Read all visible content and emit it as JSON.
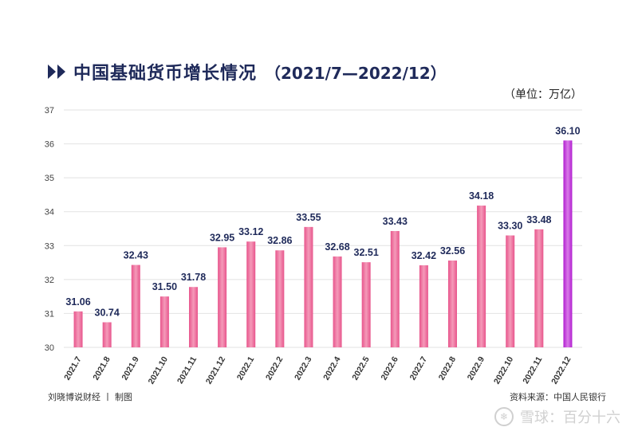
{
  "header": {
    "title": "中国基础货币增长情况",
    "subtitle": "（2021/7—2022/12）",
    "unit": "（单位：万亿）"
  },
  "footer": {
    "left": "刘晓博说财经 丨 制图",
    "right": "资料来源：中国人民银行",
    "brand": "雪球：百分十六"
  },
  "chart_data": {
    "type": "bar",
    "title": "中国基础货币增长情况",
    "categories": [
      "2021.7",
      "2021.8",
      "2021.9",
      "2021.10",
      "2021.11",
      "2021.12",
      "2022.1",
      "2022.2",
      "2022.3",
      "2022.4",
      "2022.5",
      "2022.6",
      "2022.7",
      "2022.8",
      "2022.9",
      "2022.10",
      "2022.11",
      "2022.12"
    ],
    "values": [
      31.06,
      30.74,
      32.43,
      31.5,
      31.78,
      32.95,
      33.12,
      32.86,
      33.55,
      32.68,
      32.51,
      33.43,
      32.42,
      32.56,
      34.18,
      33.3,
      33.48,
      36.1
    ],
    "value_labels": [
      "31.06",
      "30.74",
      "32.43",
      "31.50",
      "31.78",
      "32.95",
      "33.12",
      "32.86",
      "33.55",
      "32.68",
      "32.51",
      "33.43",
      "32.42",
      "32.56",
      "34.18",
      "33.30",
      "33.48",
      "36.10"
    ],
    "yticks": [
      30,
      31,
      32,
      33,
      34,
      35,
      36,
      37
    ],
    "ylim": [
      30,
      37
    ],
    "grid": true,
    "colors": {
      "bar": "#e8558c",
      "bar_light": "#f49ab9",
      "highlight": "#b11ed0",
      "highlight_light": "#d97ae8"
    }
  }
}
